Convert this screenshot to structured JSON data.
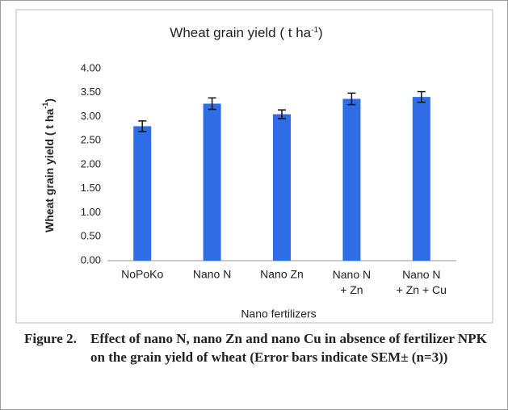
{
  "chart_data": {
    "type": "bar",
    "title": {
      "text": "Wheat grain yield ( t ha",
      "sup": "-1",
      "end": ")"
    },
    "y_label": {
      "text": "Wheat grain yield ( t ha",
      "sup": "-1",
      "end": ")"
    },
    "x_label": "Nano fertilizers",
    "categories": [
      "NoPoKo",
      "Nano N",
      "Nano Zn",
      "Nano N\n+ Zn",
      "Nano N\n+ Zn + Cu"
    ],
    "values": [
      2.8,
      3.27,
      3.05,
      3.37,
      3.41
    ],
    "errors": [
      0.11,
      0.12,
      0.09,
      0.12,
      0.11
    ],
    "color": "#2f6de6",
    "ylim": [
      0,
      4
    ],
    "yticks": [
      {
        "value": 0,
        "label": "0.00"
      },
      {
        "value": 0.5,
        "label": "0.50"
      },
      {
        "value": 1,
        "label": "1.00"
      },
      {
        "value": 1.5,
        "label": "1.50"
      },
      {
        "value": 2,
        "label": "2.00"
      },
      {
        "value": 2.5,
        "label": "2.50"
      },
      {
        "value": 3,
        "label": "3.00"
      },
      {
        "value": 3.5,
        "label": "3.50"
      },
      {
        "value": 4,
        "label": "4.00"
      }
    ],
    "grid": false
  },
  "caption": {
    "label": "Figure 2.",
    "text": "Effect of nano N, nano Zn and nano Cu in absence of fertilizer NPK on the grain yield of wheat (Error bars indicate SEM± (n=3))"
  }
}
